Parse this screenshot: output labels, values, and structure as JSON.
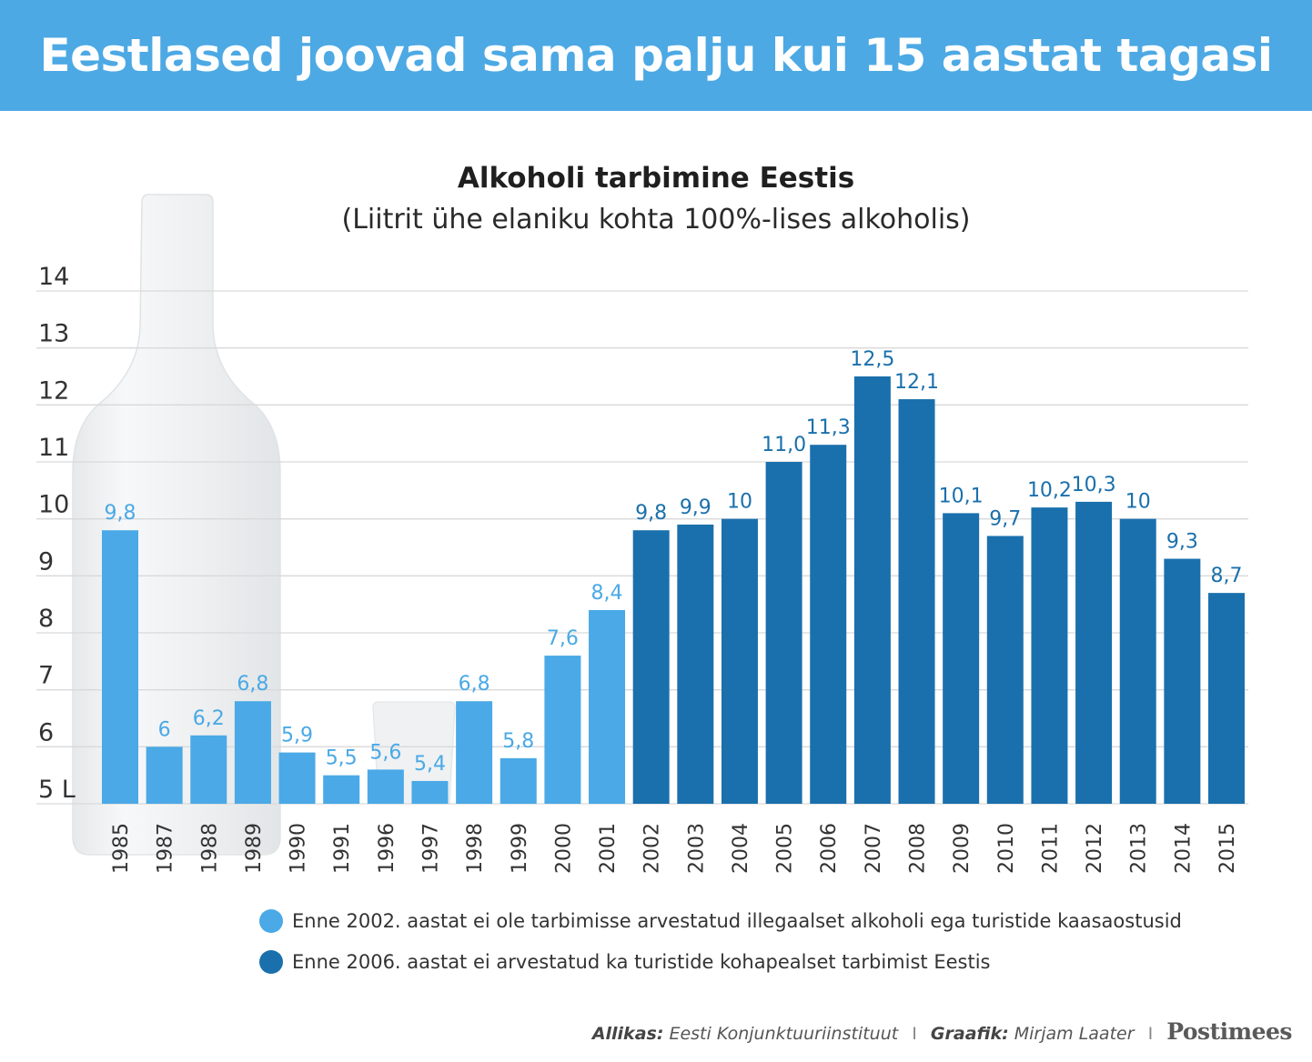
{
  "header": {
    "title": "Eestlased joovad sama palju kui 15 aastat tagasi"
  },
  "chart_data": {
    "type": "bar",
    "title": "Alkoholi tarbimine Eestis",
    "subtitle": "(Liitrit ühe elaniku kohta 100%-lises alkoholis)",
    "ylim": [
      5,
      14
    ],
    "yticks": [
      "5 L",
      "6",
      "7",
      "8",
      "9",
      "10",
      "11",
      "12",
      "13",
      "14"
    ],
    "grid": true,
    "categories": [
      "1985",
      "1987",
      "1988",
      "1989",
      "1990",
      "1991",
      "1996",
      "1997",
      "1998",
      "1999",
      "2000",
      "2001",
      "2002",
      "2003",
      "2004",
      "2005",
      "2006",
      "2007",
      "2008",
      "2009",
      "2010",
      "2011",
      "2012",
      "2013",
      "2014",
      "2015"
    ],
    "values": [
      9.8,
      6,
      6.2,
      6.8,
      5.9,
      5.5,
      5.6,
      5.4,
      6.8,
      5.8,
      7.6,
      8.4,
      9.8,
      9.9,
      10,
      11.0,
      11.3,
      12.5,
      12.1,
      10.1,
      9.7,
      10.2,
      10.3,
      10,
      9.3,
      8.7
    ],
    "value_labels": [
      "9,8",
      "6",
      "6,2",
      "6,8",
      "5,9",
      "5,5",
      "5,6",
      "5,4",
      "6,8",
      "5,8",
      "7,6",
      "8,4",
      "9,8",
      "9,9",
      "10",
      "11,0",
      "11,3",
      "12,5",
      "12,1",
      "10,1",
      "9,7",
      "10,2",
      "10,3",
      "10",
      "9,3",
      "8,7"
    ],
    "group": [
      "light",
      "light",
      "light",
      "light",
      "light",
      "light",
      "light",
      "light",
      "light",
      "light",
      "light",
      "light",
      "dark",
      "dark",
      "dark",
      "dark",
      "dark",
      "dark",
      "dark",
      "dark",
      "dark",
      "dark",
      "dark",
      "dark",
      "dark",
      "dark"
    ],
    "colors": {
      "light": "#4aa9e6",
      "dark": "#1a70ac",
      "grid": "#d9d9d9",
      "axis_text": "#333333"
    }
  },
  "legend": [
    {
      "label": "Enne 2002. aastat ei ole tarbimisse arvestatud illegaalset alkoholi ega turistide kaasaostusid",
      "color": "#4aa9e6"
    },
    {
      "label": "Enne 2006. aastat ei arvestatud ka turistide kohapealset tarbimist Eestis",
      "color": "#1a70ac"
    }
  ],
  "footer": {
    "source_label": "Allikas:",
    "source": "Eesti Konjunktuuriinstituut",
    "graphic_label": "Graafik:",
    "graphic": "Mirjam Laater",
    "separator": "I",
    "brand": "Postimees"
  }
}
